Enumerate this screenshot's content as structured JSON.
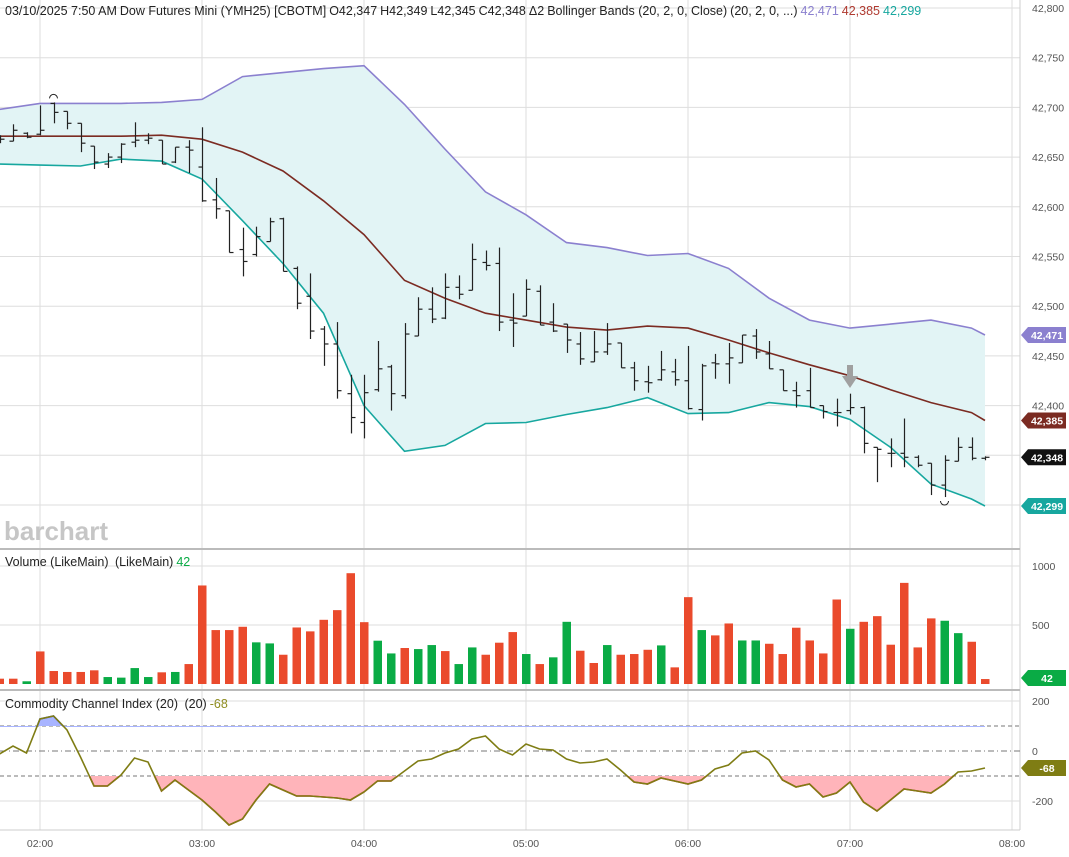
{
  "header": {
    "datetime": "03/10/2025 7:50 AM",
    "instrument": "Dow Futures Mini (YMH25) [CBOTM]",
    "open": "O42,347",
    "high": "H42,349",
    "low": "L42,345",
    "close": "C42,348",
    "change": "Δ2",
    "study": "Bollinger Bands (20, 2, 0, Close)",
    "study_params": "(20, 2, 0, ...)",
    "upper_value": "42,471",
    "middle_value": "42,385",
    "lower_value": "42,299"
  },
  "volume_legend": {
    "label": "Volume (LikeMain)",
    "params": "(LikeMain)",
    "value": "42"
  },
  "cci_legend": {
    "label": "Commodity Channel Index (20)",
    "params": "(20)",
    "value": "-68"
  },
  "watermark": "barchart",
  "colors": {
    "upper": "#8b80cf",
    "middle": "#7b2b22",
    "lower": "#17a79f",
    "band_fill": "#e2f4f5",
    "up": "#0aab45",
    "down": "#ea4a2c",
    "cci_line": "#7f7d14",
    "cci_low_fill": "#ffb4ba",
    "cci_low_line": "#e0202e",
    "cci_high_fill": "#a8b4ff",
    "cci_high_line": "#3344dd",
    "last_price": "#111111"
  },
  "chart_data": [
    {
      "type": "ohlc",
      "panel": "price",
      "ylim": [
        42300,
        42800
      ],
      "yticks": [
        "42,800",
        "42,750",
        "42,700",
        "42,650",
        "42,600",
        "42,550",
        "42,500",
        "42,450",
        "42,400"
      ],
      "xticks": [
        "02:00",
        "03:00",
        "04:00",
        "05:00",
        "06:00",
        "07:00",
        "08:00"
      ],
      "grid": true,
      "bars_columns": [
        "time",
        "open",
        "high",
        "low",
        "close"
      ],
      "bars": [
        [
          "01:45",
          42668,
          42672,
          42664,
          42668
        ],
        [
          "01:50",
          42666,
          42683,
          42666,
          42677
        ],
        [
          "01:55",
          42674,
          42675,
          42669,
          42670
        ],
        [
          "02:00",
          42673,
          42702,
          42672,
          42677
        ],
        [
          "02:05",
          42704,
          42705,
          42684,
          42695
        ],
        [
          "02:10",
          42696,
          42696,
          42678,
          42684
        ],
        [
          "02:15",
          42684,
          42684,
          42655,
          42664
        ],
        [
          "02:20",
          42661,
          42661,
          42638,
          42645
        ],
        [
          "02:25",
          42643,
          42654,
          42639,
          42650
        ],
        [
          "02:30",
          42650,
          42664,
          42644,
          42663
        ],
        [
          "02:35",
          42665,
          42685,
          42660,
          42667
        ],
        [
          "02:40",
          42667,
          42674,
          42663,
          42669
        ],
        [
          "02:45",
          42667,
          42667,
          42643,
          42643
        ],
        [
          "02:50",
          42645,
          42660,
          42644,
          42660
        ],
        [
          "02:55",
          42660,
          42667,
          42634,
          42657
        ],
        [
          "03:00",
          42640,
          42680,
          42605,
          42606
        ],
        [
          "03:05",
          42607,
          42629,
          42588,
          42598
        ],
        [
          "03:10",
          42596,
          42596,
          42554,
          42554
        ],
        [
          "03:15",
          42557,
          42579,
          42530,
          42545
        ],
        [
          "03:20",
          42552,
          42580,
          42550,
          42570
        ],
        [
          "03:25",
          42565,
          42589,
          42565,
          42585
        ],
        [
          "03:30",
          42588,
          42589,
          42535,
          42535
        ],
        [
          "03:35",
          42538,
          42540,
          42497,
          42503
        ],
        [
          "03:40",
          42510,
          42533,
          42467,
          42475
        ],
        [
          "03:45",
          42477,
          42480,
          42440,
          42462
        ],
        [
          "03:50",
          42462,
          42484,
          42407,
          42415
        ],
        [
          "03:55",
          42412,
          42431,
          42372,
          42388
        ],
        [
          "04:00",
          42383,
          42431,
          42367,
          42413
        ],
        [
          "04:05",
          42416,
          42465,
          42414,
          42437
        ],
        [
          "04:10",
          42439,
          42441,
          42395,
          42412
        ],
        [
          "04:15",
          42410,
          42483,
          42407,
          42472
        ],
        [
          "04:20",
          42470,
          42509,
          42470,
          42497
        ],
        [
          "04:25",
          42497,
          42519,
          42483,
          42487
        ],
        [
          "04:30",
          42488,
          42533,
          42487,
          42519
        ],
        [
          "04:35",
          42519,
          42531,
          42507,
          42512
        ],
        [
          "04:40",
          42516,
          42563,
          42516,
          42547
        ],
        [
          "04:45",
          42544,
          42556,
          42536,
          42541
        ],
        [
          "04:50",
          42543,
          42559,
          42475,
          42484
        ],
        [
          "04:55",
          42486,
          42513,
          42459,
          42483
        ],
        [
          "05:00",
          42490,
          42527,
          42490,
          42517
        ],
        [
          "05:05",
          42515,
          42521,
          42481,
          42481
        ],
        [
          "05:10",
          42484,
          42503,
          42474,
          42475
        ],
        [
          "05:15",
          42482,
          42482,
          42453,
          42466
        ],
        [
          "05:20",
          42462,
          42474,
          42441,
          42447
        ],
        [
          "05:25",
          42444,
          42475,
          42444,
          42454
        ],
        [
          "05:30",
          42454,
          42483,
          42451,
          42462
        ],
        [
          "05:35",
          42463,
          42463,
          42438,
          42438
        ],
        [
          "05:40",
          42438,
          42444,
          42415,
          42425
        ],
        [
          "05:45",
          42424,
          42440,
          42413,
          42423
        ],
        [
          "05:50",
          42426,
          42455,
          42425,
          42436
        ],
        [
          "05:55",
          42434,
          42447,
          42420,
          42426
        ],
        [
          "06:00",
          42425,
          42460,
          42396,
          42397
        ],
        [
          "06:05",
          42396,
          42442,
          42385,
          42440
        ],
        [
          "06:10",
          42443,
          42452,
          42427,
          42442
        ],
        [
          "06:15",
          42442,
          42463,
          42422,
          42448
        ],
        [
          "06:20",
          42443,
          42471,
          42443,
          42471
        ],
        [
          "06:25",
          42470,
          42477,
          42447,
          42454
        ],
        [
          "06:30",
          42452,
          42465,
          42437,
          42437
        ],
        [
          "06:35",
          42436,
          42436,
          42415,
          42415
        ],
        [
          "06:40",
          42415,
          42424,
          42398,
          42410
        ],
        [
          "06:45",
          42415,
          42438,
          42398,
          42398
        ],
        [
          "06:50",
          42400,
          42400,
          42387,
          42394
        ],
        [
          "06:55",
          42393,
          42407,
          42379,
          42393
        ],
        [
          "07:00",
          42395,
          42412,
          42391,
          42398
        ],
        [
          "07:05",
          42398,
          42399,
          42352,
          42362
        ],
        [
          "07:10",
          42358,
          42358,
          42323,
          42356
        ],
        [
          "07:15",
          42352,
          42367,
          42338,
          42352
        ],
        [
          "07:20",
          42352,
          42387,
          42338,
          42348
        ],
        [
          "07:25",
          42348,
          42350,
          42338,
          42340
        ],
        [
          "07:30",
          42342,
          42342,
          42310,
          42320
        ],
        [
          "07:35",
          42320,
          42350,
          42308,
          42345
        ],
        [
          "07:40",
          42344,
          42368,
          42344,
          42358
        ],
        [
          "07:45",
          42358,
          42368,
          42345,
          42347
        ],
        [
          "07:50",
          42347,
          42349,
          42345,
          42348
        ]
      ],
      "bollinger_times": [
        "01:45",
        "02:00",
        "02:15",
        "02:30",
        "02:45",
        "03:00",
        "03:15",
        "03:30",
        "03:45",
        "04:00",
        "04:15",
        "04:30",
        "04:45",
        "05:00",
        "05:15",
        "05:30",
        "05:45",
        "06:00",
        "06:15",
        "06:30",
        "06:45",
        "07:00",
        "07:15",
        "07:30",
        "07:45",
        "07:50"
      ],
      "bollinger_upper": [
        42698,
        42704,
        42704,
        42704,
        42705,
        42708,
        42731,
        42735,
        42739,
        42742,
        42703,
        42658,
        42615,
        42592,
        42564,
        42559,
        42551,
        42553,
        42538,
        42508,
        42486,
        42478,
        42482,
        42486,
        42478,
        42471
      ],
      "bollinger_middle": [
        42671,
        42671,
        42671,
        42671,
        42672,
        42668,
        42655,
        42636,
        42606,
        42572,
        42526,
        42508,
        42493,
        42486,
        42479,
        42476,
        42480,
        42478,
        42466,
        42453,
        42441,
        42430,
        42416,
        42403,
        42393,
        42385
      ],
      "bollinger_lower": [
        42643,
        42642,
        42641,
        42648,
        42646,
        42628,
        42586,
        42543,
        42493,
        42400,
        42354,
        42360,
        42382,
        42383,
        42391,
        42398,
        42408,
        42392,
        42393,
        42403,
        42399,
        42386,
        42358,
        42321,
        42306,
        42299
      ],
      "last_tags": [
        "42,471",
        "42,385",
        "42,348",
        "42,299"
      ]
    },
    {
      "type": "bar",
      "panel": "volume",
      "ylim": [
        0,
        1050
      ],
      "yticks": [
        "1000",
        "500"
      ],
      "values": [
        45,
        45,
        23,
        276,
        110,
        102,
        102,
        116,
        59,
        54,
        135,
        59,
        99,
        102,
        169,
        835,
        457,
        457,
        485,
        353,
        344,
        248,
        479,
        446,
        544,
        626,
        939,
        524,
        367,
        259,
        305,
        296,
        330,
        279,
        169,
        310,
        248,
        350,
        440,
        254,
        169,
        226,
        527,
        282,
        178,
        330,
        248,
        254,
        290,
        327,
        141,
        736,
        457,
        412,
        513,
        369,
        369,
        341,
        254,
        477,
        369,
        259,
        716,
        468,
        527,
        575,
        333,
        857,
        310,
        556,
        536,
        431,
        358,
        42
      ],
      "direction": "dduddddduuuududdddduuddddddduuduuduuddduduudduddduddudduuddddddudddddduud",
      "last_tag": "42"
    },
    {
      "type": "line",
      "panel": "cci",
      "ylim": [
        -300,
        220
      ],
      "yticks": [
        "200",
        "0",
        "-200"
      ],
      "levels": [
        100,
        0,
        -100
      ],
      "values": [
        -12,
        20,
        -8,
        128,
        140,
        84,
        -24,
        -140,
        -140,
        -96,
        -28,
        -44,
        -160,
        -116,
        -156,
        -196,
        -244,
        -296,
        -272,
        -196,
        -132,
        -156,
        -180,
        -180,
        -184,
        -188,
        -196,
        -164,
        -120,
        -120,
        -80,
        -40,
        -32,
        -8,
        8,
        48,
        60,
        8,
        -16,
        28,
        8,
        4,
        -32,
        -48,
        -44,
        -32,
        -76,
        -124,
        -132,
        -108,
        -120,
        -132,
        -116,
        -72,
        -56,
        -8,
        0,
        -36,
        -116,
        -144,
        -132,
        -184,
        -168,
        -124,
        -204,
        -240,
        -196,
        -152,
        -160,
        -168,
        -132,
        -84,
        -80,
        -68
      ],
      "last_tag": "-68"
    }
  ]
}
